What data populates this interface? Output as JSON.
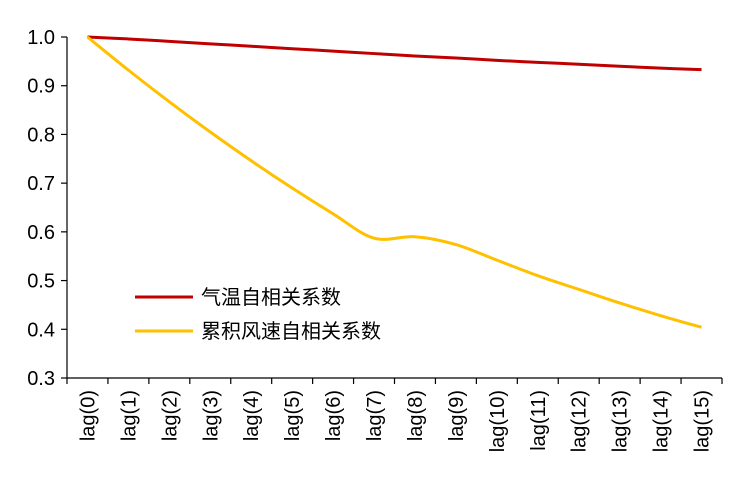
{
  "chart_data": {
    "type": "line",
    "categories": [
      "lag(0)",
      "lag(1)",
      "lag(2)",
      "lag(3)",
      "lag(4)",
      "lag(5)",
      "lag(6)",
      "lag(7)",
      "lag(8)",
      "lag(9)",
      "lag(10)",
      "lag(11)",
      "lag(12)",
      "lag(13)",
      "lag(14)",
      "lag(15)"
    ],
    "y_ticks": [
      "1.0",
      "0.9",
      "0.8",
      "0.7",
      "0.6",
      "0.5",
      "0.4",
      "0.3"
    ],
    "ylim": [
      0.3,
      1.0
    ],
    "grid": false,
    "legend_position": "lower-left",
    "series": [
      {
        "name": "气温自相关系数",
        "color": "#c00000",
        "values": [
          1.0,
          0.996,
          0.991,
          0.986,
          0.981,
          0.976,
          0.971,
          0.966,
          0.961,
          0.957,
          0.952,
          0.948,
          0.944,
          0.94,
          0.936,
          0.933
        ]
      },
      {
        "name": "累积风速自相关系数",
        "color": "#ffc000",
        "values": [
          1.0,
          0.932,
          0.867,
          0.805,
          0.746,
          0.69,
          0.637,
          0.587,
          0.59,
          0.574,
          0.542,
          0.51,
          0.482,
          0.454,
          0.428,
          0.404
        ]
      }
    ]
  }
}
